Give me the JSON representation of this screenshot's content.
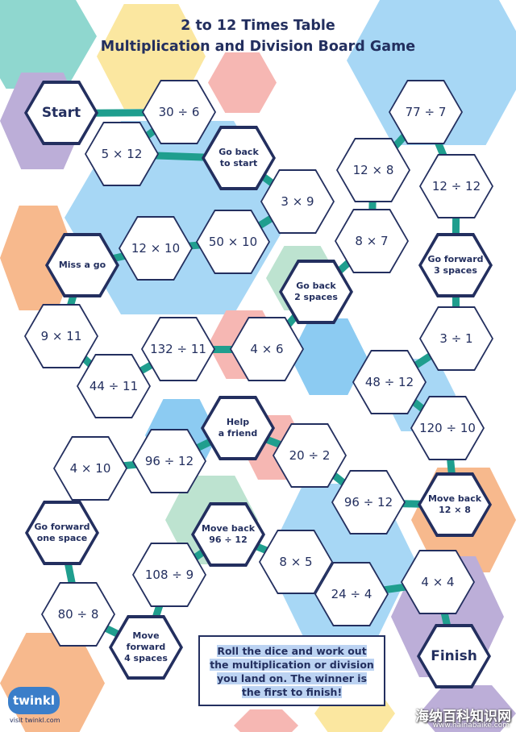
{
  "title_line1": "2 to 12 Times Table",
  "title_line2": "Multiplication and Division Board Game",
  "instructions": "Roll the dice and work out the multiplication or division you land on. The winner is the first to finish!",
  "logo_text": "twinkl",
  "logo_subtext": "visit twinkl.com",
  "watermark_text": "海纳百科知识网",
  "watermark_url": "www.hainabaike.com",
  "spaces": [
    {
      "name": "start",
      "label": "Start",
      "type": "big"
    },
    {
      "name": "30-div-6",
      "label": "30 ÷ 6",
      "type": "plain"
    },
    {
      "name": "5-times-12",
      "label": "5 × 12",
      "type": "plain"
    },
    {
      "name": "go-back-to-start",
      "label": "Go back\nto start",
      "type": "special"
    },
    {
      "name": "3-times-9",
      "label": "3 × 9",
      "type": "plain"
    },
    {
      "name": "50-times-10",
      "label": "50 × 10",
      "type": "plain"
    },
    {
      "name": "12-times-10",
      "label": "12 × 10",
      "type": "plain"
    },
    {
      "name": "miss-a-go",
      "label": "Miss a go",
      "type": "special"
    },
    {
      "name": "9-times-11",
      "label": "9 × 11",
      "type": "plain"
    },
    {
      "name": "44-div-11",
      "label": "44 ÷ 11",
      "type": "plain"
    },
    {
      "name": "132-div-11",
      "label": "132 ÷ 11",
      "type": "plain"
    },
    {
      "name": "4-times-6",
      "label": "4 × 6",
      "type": "plain"
    },
    {
      "name": "go-back-2-spaces",
      "label": "Go back\n2 spaces",
      "type": "special"
    },
    {
      "name": "8-times-7",
      "label": "8 × 7",
      "type": "plain"
    },
    {
      "name": "12-times-8",
      "label": "12 × 8",
      "type": "plain"
    },
    {
      "name": "77-div-7",
      "label": "77 ÷ 7",
      "type": "plain"
    },
    {
      "name": "12-div-12",
      "label": "12 ÷ 12",
      "type": "plain"
    },
    {
      "name": "go-forward-3-spaces",
      "label": "Go forward\n3 spaces",
      "type": "special"
    },
    {
      "name": "3-div-1",
      "label": "3 ÷ 1",
      "type": "plain"
    },
    {
      "name": "48-div-12",
      "label": "48 ÷ 12",
      "type": "plain"
    },
    {
      "name": "120-div-10",
      "label": "120 ÷ 10",
      "type": "plain"
    },
    {
      "name": "move-back-12-times-8",
      "label": "Move back\n12 × 8",
      "type": "special"
    },
    {
      "name": "96-div-12-right",
      "label": "96 ÷ 12",
      "type": "plain"
    },
    {
      "name": "20-div-2",
      "label": "20 ÷ 2",
      "type": "plain"
    },
    {
      "name": "help-a-friend",
      "label": "Help\na friend",
      "type": "special"
    },
    {
      "name": "96-div-12-left",
      "label": "96 ÷ 12",
      "type": "plain"
    },
    {
      "name": "4-times-10",
      "label": "4 × 10",
      "type": "plain"
    },
    {
      "name": "go-forward-one-space",
      "label": "Go forward\none space",
      "type": "special"
    },
    {
      "name": "80-div-8",
      "label": "80 ÷ 8",
      "type": "plain"
    },
    {
      "name": "move-forward-4-spaces",
      "label": "Move\nforward\n4 spaces",
      "type": "special"
    },
    {
      "name": "108-div-9",
      "label": "108 ÷ 9",
      "type": "plain"
    },
    {
      "name": "move-back-96-div-12",
      "label": "Move back\n96 ÷ 12",
      "type": "special"
    },
    {
      "name": "8-times-5",
      "label": "8 × 5",
      "type": "plain"
    },
    {
      "name": "24-div-4",
      "label": "24 ÷ 4",
      "type": "plain"
    },
    {
      "name": "4-times-4",
      "label": "4 × 4",
      "type": "plain"
    },
    {
      "name": "finish",
      "label": "Finish",
      "type": "big"
    }
  ],
  "colors": {
    "outline": "#232f5f",
    "connector": "#1f9e8e",
    "teal": "#8fd7cf",
    "yellow": "#fbe7a0",
    "pink": "#f6b7b3",
    "purple": "#bcaed8",
    "orange": "#f7b98d",
    "light_blue": "#a7d7f5",
    "mint": "#bde3d0",
    "sky": "#8ccbf2"
  }
}
